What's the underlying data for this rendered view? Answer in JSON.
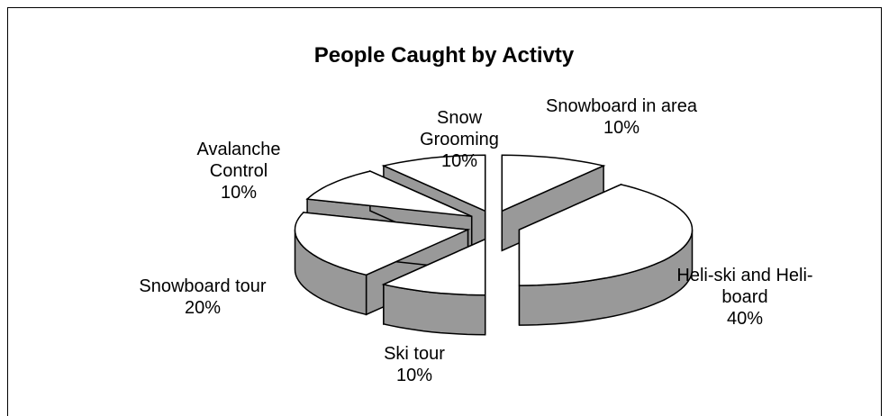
{
  "chart_data": {
    "type": "pie3d",
    "title": "People Caught by Activty",
    "categories": [
      "Snowboard in area",
      "Heli-ski and Heli-board",
      "Ski tour",
      "Snowboard tour",
      "Avalanche Control",
      "Snow Grooming"
    ],
    "values": [
      10,
      40,
      10,
      20,
      10,
      10
    ],
    "value_labels": [
      "10%",
      "40%",
      "10%",
      "20%",
      "10%",
      "10%"
    ],
    "colors": {
      "top": "#ffffff",
      "side": "#999999"
    }
  }
}
